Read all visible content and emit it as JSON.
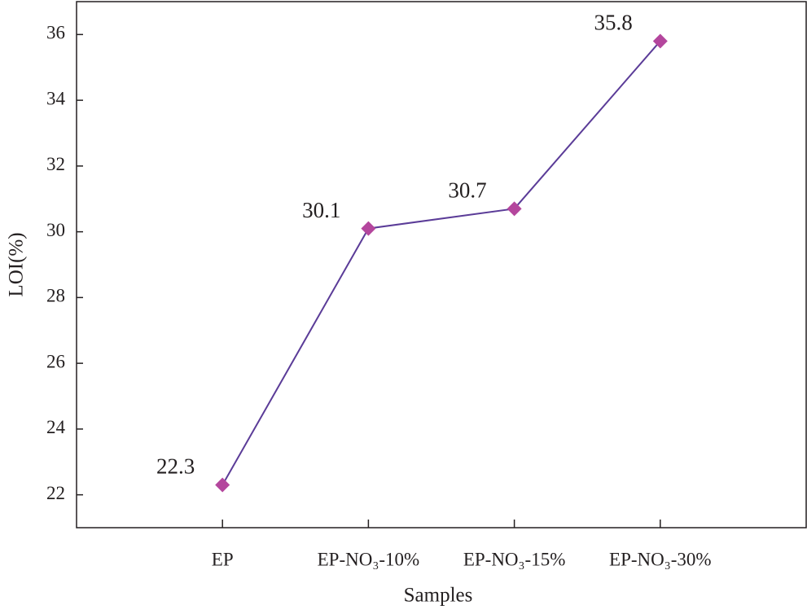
{
  "chart_data": {
    "type": "line",
    "x_label": "Samples",
    "y_label": "LOI(%)",
    "categories": [
      "EP",
      "EP-NO₃-10%",
      "EP-NO₃-15%",
      "EP-NO₃-30%"
    ],
    "series": [
      {
        "values": [
          22.3,
          30.1,
          30.7,
          35.8
        ],
        "color": "#5b3c98",
        "marker_color": "#b4469d"
      }
    ],
    "ylim": [
      21,
      37
    ],
    "yticks": [
      22,
      24,
      26,
      28,
      30,
      32,
      34,
      36
    ],
    "grid": false
  }
}
